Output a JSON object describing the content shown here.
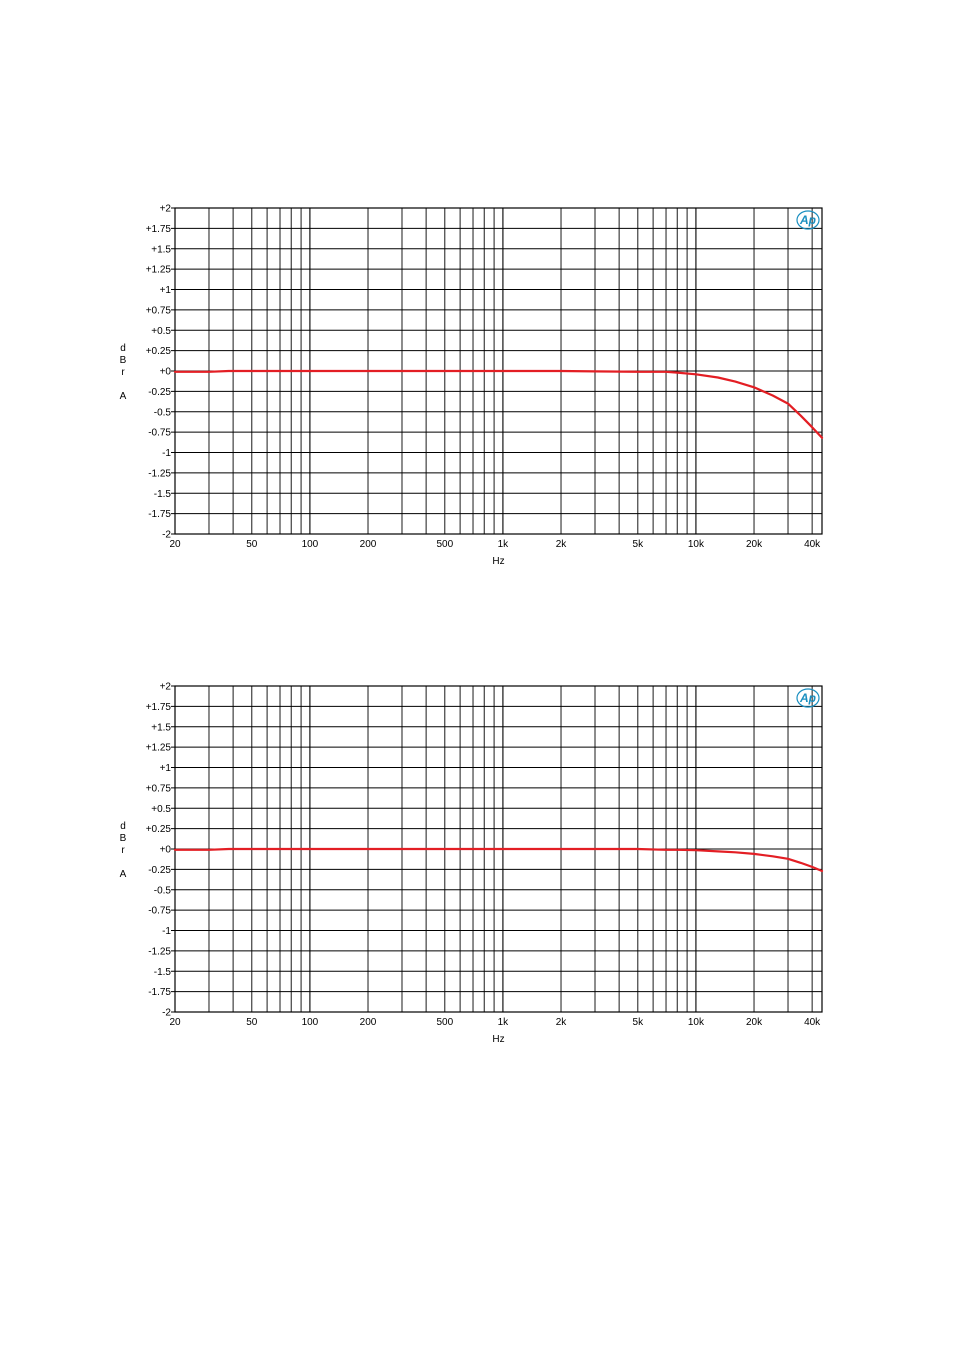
{
  "chart_data": [
    {
      "type": "line",
      "title": "",
      "xlabel": "Hz",
      "ylabel": "dBr A",
      "x_scale": "log",
      "xlim": [
        20,
        45000
      ],
      "ylim": [
        -2,
        2
      ],
      "grid": true,
      "logo": "Ap",
      "line_color": "#e31e24",
      "x_ticks": [
        {
          "value": 20,
          "label": "20"
        },
        {
          "value": 50,
          "label": "50"
        },
        {
          "value": 100,
          "label": "100"
        },
        {
          "value": 200,
          "label": "200"
        },
        {
          "value": 500,
          "label": "500"
        },
        {
          "value": 1000,
          "label": "1k"
        },
        {
          "value": 2000,
          "label": "2k"
        },
        {
          "value": 5000,
          "label": "5k"
        },
        {
          "value": 10000,
          "label": "10k"
        },
        {
          "value": 20000,
          "label": "20k"
        },
        {
          "value": 40000,
          "label": "40k"
        }
      ],
      "y_ticks": [
        {
          "value": 2,
          "label": "+2"
        },
        {
          "value": 1.75,
          "label": "+1.75"
        },
        {
          "value": 1.5,
          "label": "+1.5"
        },
        {
          "value": 1.25,
          "label": "+1.25"
        },
        {
          "value": 1,
          "label": "+1"
        },
        {
          "value": 0.75,
          "label": "+0.75"
        },
        {
          "value": 0.5,
          "label": "+0.5"
        },
        {
          "value": 0.25,
          "label": "+0.25"
        },
        {
          "value": 0,
          "label": "+0"
        },
        {
          "value": -0.25,
          "label": "-0.25"
        },
        {
          "value": -0.5,
          "label": "-0.5"
        },
        {
          "value": -0.75,
          "label": "-0.75"
        },
        {
          "value": -1,
          "label": "-1"
        },
        {
          "value": -1.25,
          "label": "-1.25"
        },
        {
          "value": -1.5,
          "label": "-1.5"
        },
        {
          "value": -1.75,
          "label": "-1.75"
        },
        {
          "value": -2,
          "label": "-2"
        }
      ],
      "series": [
        {
          "x": [
            20,
            30,
            38,
            100,
            500,
            1000,
            2000,
            3000,
            5000,
            7000,
            8000,
            10000,
            13000,
            16000,
            20000,
            25000,
            30000,
            35000,
            40000,
            45000
          ],
          "y": [
            -0.01,
            -0.01,
            0.0,
            0.0,
            0.0,
            0.0,
            0.0,
            -0.005,
            -0.01,
            -0.01,
            -0.02,
            -0.04,
            -0.08,
            -0.13,
            -0.2,
            -0.3,
            -0.4,
            -0.55,
            -0.69,
            -0.82
          ]
        }
      ]
    },
    {
      "type": "line",
      "title": "",
      "xlabel": "Hz",
      "ylabel": "dBr A",
      "x_scale": "log",
      "xlim": [
        20,
        45000
      ],
      "ylim": [
        -2,
        2
      ],
      "grid": true,
      "logo": "Ap",
      "line_color": "#e31e24",
      "x_ticks": [
        {
          "value": 20,
          "label": "20"
        },
        {
          "value": 50,
          "label": "50"
        },
        {
          "value": 100,
          "label": "100"
        },
        {
          "value": 200,
          "label": "200"
        },
        {
          "value": 500,
          "label": "500"
        },
        {
          "value": 1000,
          "label": "1k"
        },
        {
          "value": 2000,
          "label": "2k"
        },
        {
          "value": 5000,
          "label": "5k"
        },
        {
          "value": 10000,
          "label": "10k"
        },
        {
          "value": 20000,
          "label": "20k"
        },
        {
          "value": 40000,
          "label": "40k"
        }
      ],
      "y_ticks": [
        {
          "value": 2,
          "label": "+2"
        },
        {
          "value": 1.75,
          "label": "+1.75"
        },
        {
          "value": 1.5,
          "label": "+1.5"
        },
        {
          "value": 1.25,
          "label": "+1.25"
        },
        {
          "value": 1,
          "label": "+1"
        },
        {
          "value": 0.75,
          "label": "+0.75"
        },
        {
          "value": 0.5,
          "label": "+0.5"
        },
        {
          "value": 0.25,
          "label": "+0.25"
        },
        {
          "value": 0,
          "label": "+0"
        },
        {
          "value": -0.25,
          "label": "-0.25"
        },
        {
          "value": -0.5,
          "label": "-0.5"
        },
        {
          "value": -0.75,
          "label": "-0.75"
        },
        {
          "value": -1,
          "label": "-1"
        },
        {
          "value": -1.25,
          "label": "-1.25"
        },
        {
          "value": -1.5,
          "label": "-1.5"
        },
        {
          "value": -1.75,
          "label": "-1.75"
        },
        {
          "value": -2,
          "label": "-2"
        }
      ],
      "series": [
        {
          "x": [
            20,
            30,
            38,
            100,
            500,
            1000,
            2000,
            5000,
            7000,
            8000,
            10000,
            13000,
            16000,
            20000,
            25000,
            30000,
            35000,
            40000,
            45000
          ],
          "y": [
            -0.01,
            -0.01,
            0.0,
            0.0,
            0.0,
            0.0,
            0.0,
            0.0,
            -0.01,
            -0.01,
            -0.015,
            -0.03,
            -0.04,
            -0.06,
            -0.09,
            -0.12,
            -0.17,
            -0.22,
            -0.27
          ]
        }
      ]
    }
  ]
}
